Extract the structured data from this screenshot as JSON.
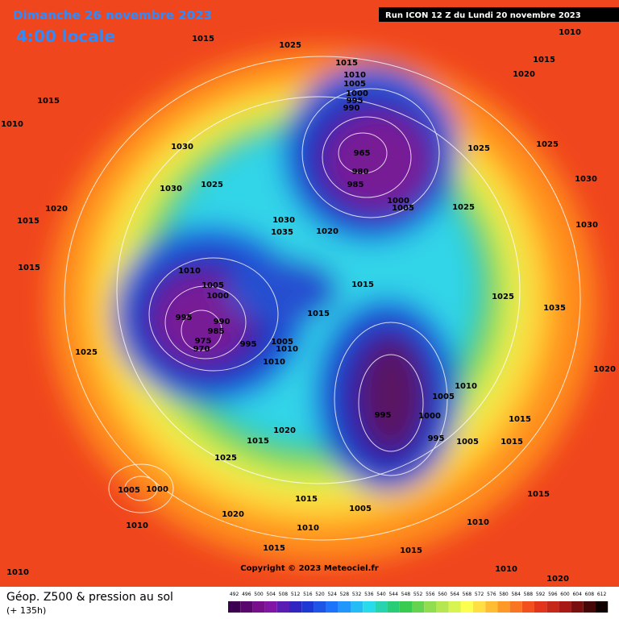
{
  "header": {
    "date": "Dimanche 26 novembre 2023",
    "time": "4:00 locale",
    "run": "Run ICON 12 Z du Lundi 20 novembre 2023"
  },
  "footer": {
    "title": "Géop. Z500 & pression au sol",
    "lead": "(+ 135h)",
    "copyright": "Copyright © 2023 Meteociel.fr"
  },
  "scale": [
    492,
    496,
    500,
    504,
    508,
    512,
    516,
    520,
    524,
    528,
    532,
    536,
    540,
    544,
    548,
    552,
    556,
    560,
    564,
    568,
    572,
    576,
    580,
    584,
    588,
    592,
    596,
    600,
    604,
    608,
    612
  ],
  "isobar_labels": [
    1015,
    1025,
    1015,
    1010,
    1005,
    1000,
    995,
    990,
    965,
    980,
    985,
    1000,
    1005,
    1010,
    1015,
    1020,
    1015,
    1010,
    1030,
    1025,
    1025,
    1030,
    1030,
    1025,
    1020,
    1015,
    1030,
    1035,
    1020,
    1025,
    1030,
    1015,
    1010,
    1005,
    1000,
    995,
    990,
    985,
    975,
    970,
    995,
    1005,
    1010,
    1010,
    1015,
    1015,
    1025,
    995,
    1000,
    1005,
    1010,
    995,
    1005,
    1015,
    1020,
    1015,
    1025,
    1005,
    1000,
    1010,
    1020,
    1015,
    1010,
    1005,
    1015,
    1010,
    1015,
    1020,
    1015,
    1010,
    1015,
    1010,
    1020,
    1025,
    1035
  ]
}
